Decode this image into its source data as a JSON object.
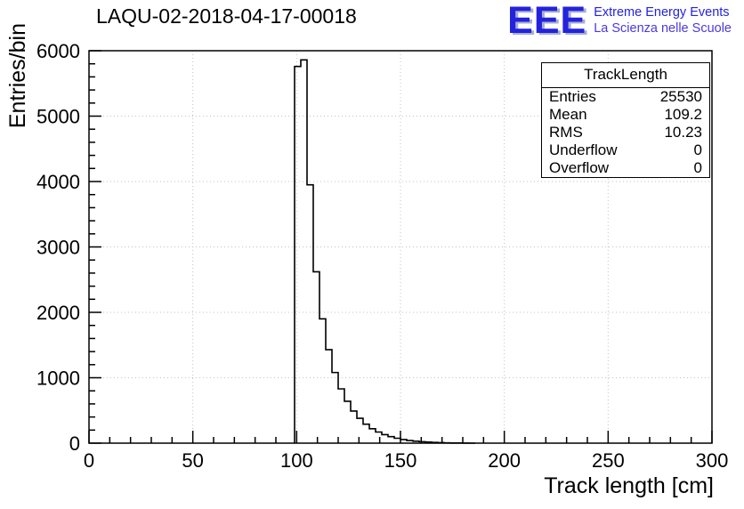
{
  "header": {
    "logo": {
      "text": "EEE",
      "line1": "Extreme Energy Events",
      "line2": "La Scienza nelle Scuole",
      "color": "#2323dd"
    }
  },
  "stats": {
    "title": "TrackLength",
    "rows": [
      {
        "label": "Entries",
        "value": "25530"
      },
      {
        "label": "Mean",
        "value": "109.2"
      },
      {
        "label": "RMS",
        "value": "10.23"
      },
      {
        "label": "Underflow",
        "value": "0"
      },
      {
        "label": "Overflow",
        "value": "0"
      }
    ]
  },
  "chart_data": {
    "type": "bar",
    "subtype": "step-histogram",
    "title": "LAQU-02-2018-04-17-00018",
    "xlabel": "Track length [cm]",
    "ylabel": "Entries/bin",
    "xlim": [
      0,
      300
    ],
    "ylim": [
      0,
      6000
    ],
    "x_major_ticks": [
      0,
      50,
      100,
      150,
      200,
      250,
      300
    ],
    "y_major_ticks": [
      0,
      1000,
      2000,
      3000,
      4000,
      5000,
      6000
    ],
    "x_minor_step": 10,
    "y_minor_step": 200,
    "grid": true,
    "legend": "none",
    "line_color": "#000000",
    "bin_start": 99,
    "bin_width": 3,
    "bin_counts": [
      5760,
      5860,
      3950,
      2620,
      1900,
      1430,
      1080,
      830,
      640,
      490,
      380,
      290,
      220,
      170,
      130,
      100,
      75,
      55,
      40,
      30,
      22,
      16,
      11,
      8,
      5,
      3,
      2,
      1,
      0
    ]
  }
}
